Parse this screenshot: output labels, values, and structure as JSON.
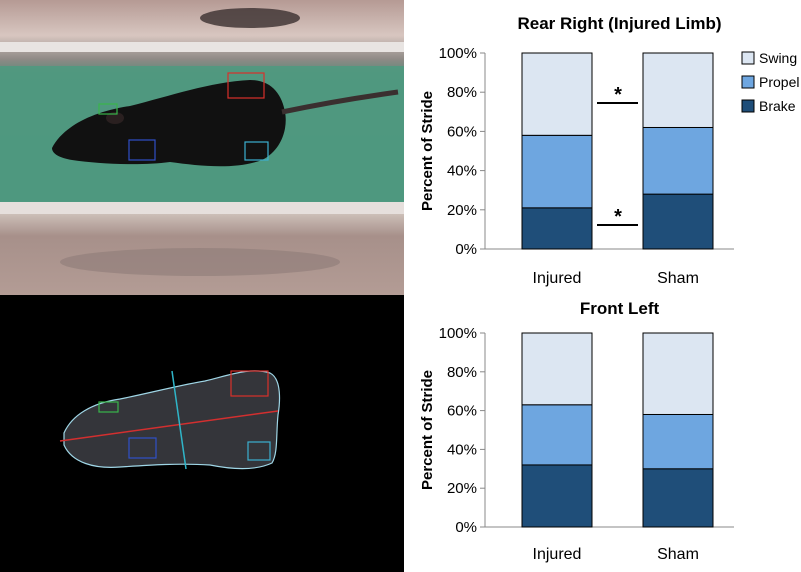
{
  "colors": {
    "swing": "#dce6f2",
    "propel": "#6ea6e0",
    "brake": "#1f4e79",
    "outline": "#000000"
  },
  "chart_data": [
    {
      "type": "bar",
      "stacked": true,
      "title": "Rear Right (Injured Limb)",
      "ylabel": "Percent of Stride",
      "xlabel": "",
      "ylim": [
        0,
        100
      ],
      "yticks": [
        "0%",
        "20%",
        "40%",
        "60%",
        "80%",
        "100%"
      ],
      "categories": [
        "Injured",
        "Sham"
      ],
      "series": [
        {
          "name": "Brake",
          "values": [
            21,
            28
          ]
        },
        {
          "name": "Propel",
          "values": [
            37,
            34
          ]
        },
        {
          "name": "Swing",
          "values": [
            42,
            38
          ]
        }
      ],
      "legend": [
        "Swing",
        "Propel",
        "Brake"
      ],
      "legend_position": "right",
      "annotations": [
        "*",
        "*"
      ],
      "grid": false
    },
    {
      "type": "bar",
      "stacked": true,
      "title": "Front Left",
      "ylabel": "Percent of Stride",
      "xlabel": "",
      "ylim": [
        0,
        100
      ],
      "yticks": [
        "0%",
        "20%",
        "40%",
        "60%",
        "80%",
        "100%"
      ],
      "categories": [
        "Injured",
        "Sham"
      ],
      "series": [
        {
          "name": "Brake",
          "values": [
            32,
            30
          ]
        },
        {
          "name": "Propel",
          "values": [
            31,
            28
          ]
        },
        {
          "name": "Swing",
          "values": [
            37,
            42
          ]
        }
      ],
      "grid": false
    }
  ]
}
